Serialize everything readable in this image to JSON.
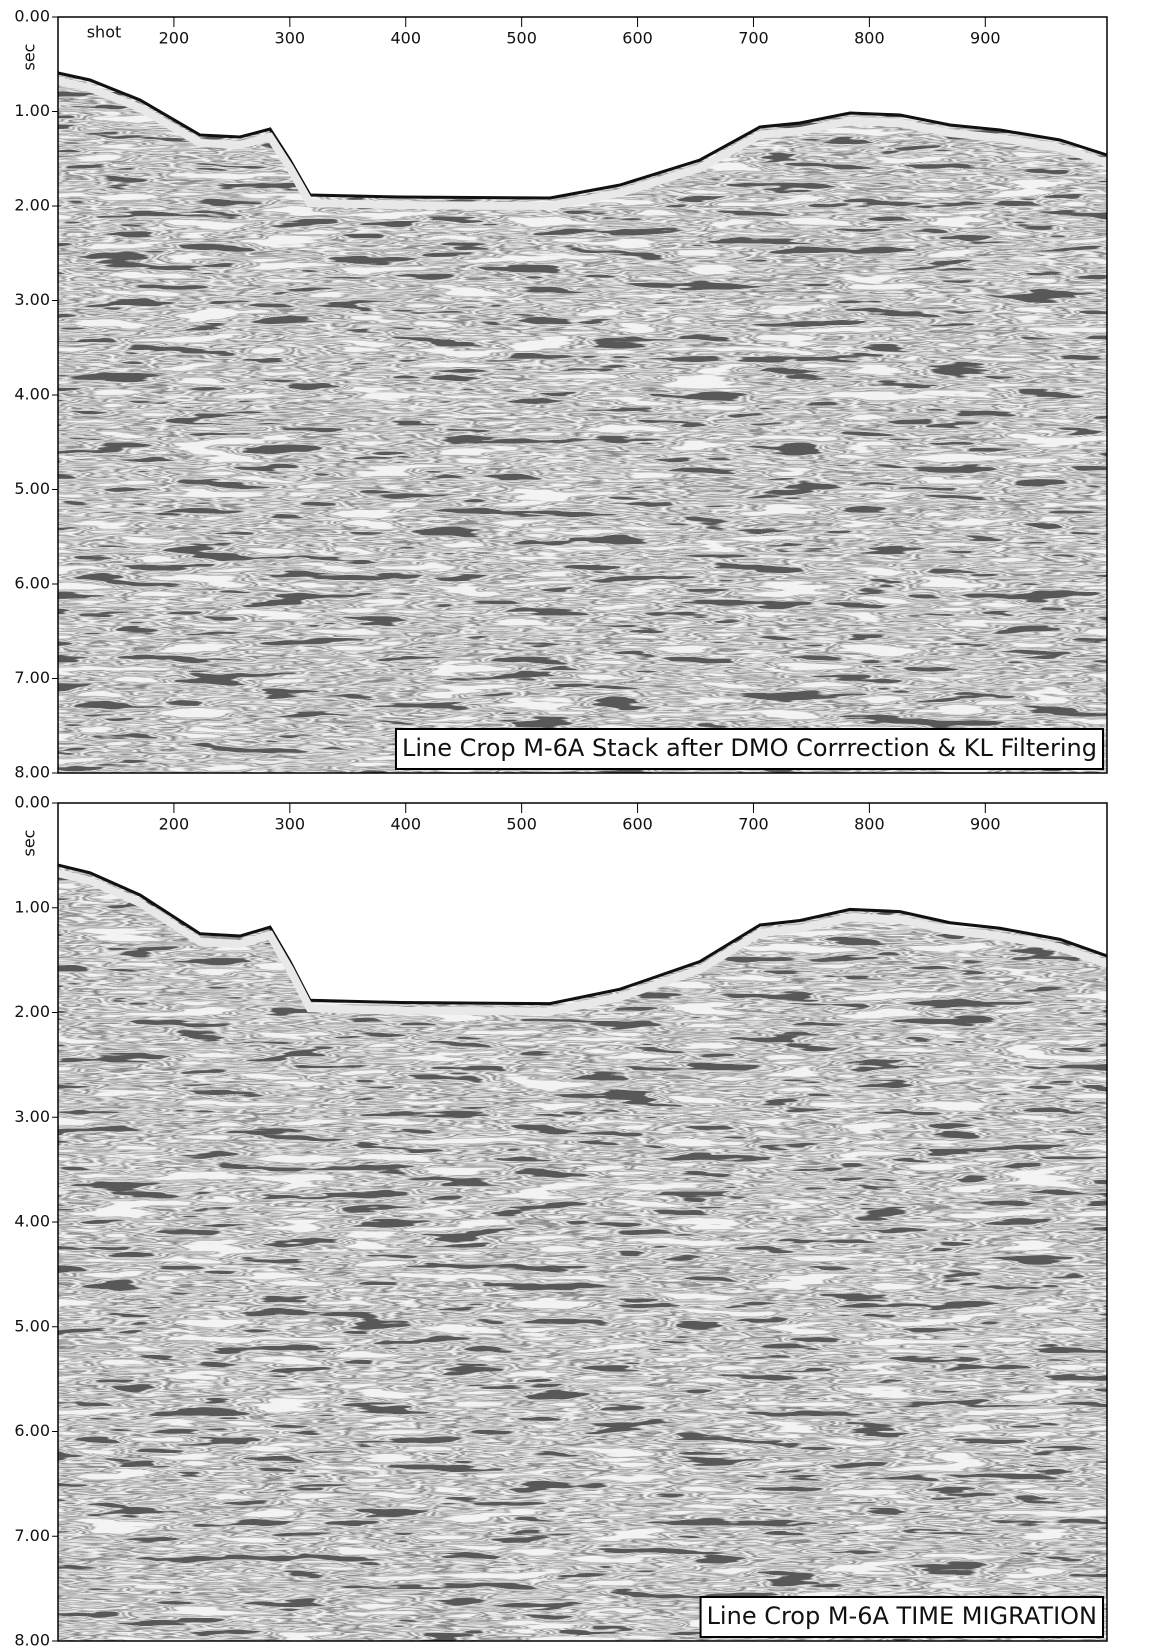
{
  "chart_data": [
    {
      "type": "seismic",
      "x_label": "shot",
      "y_label": "sec",
      "xlim": [
        100,
        1005
      ],
      "xticks": [
        200,
        300,
        400,
        500,
        600,
        700,
        800,
        900
      ],
      "ylim": [
        0,
        8
      ],
      "yticks": [
        {
          "value": 0,
          "label": "0.00"
        },
        {
          "value": 1,
          "label": "1.00"
        },
        {
          "value": 2,
          "label": "2.00"
        },
        {
          "value": 3,
          "label": "3.00"
        },
        {
          "value": 4,
          "label": "4.00"
        },
        {
          "value": 5,
          "label": "5.00"
        },
        {
          "value": 6,
          "label": "6.00"
        },
        {
          "value": 7,
          "label": "7.00"
        },
        {
          "value": 8,
          "label": "8.00"
        }
      ],
      "annotation": "Line Crop M-6A Stack after DMO Corrrection & KL Filtering"
    },
    {
      "type": "seismic",
      "y_label": "sec",
      "xlim": [
        100,
        1005
      ],
      "xticks": [
        200,
        300,
        400,
        500,
        600,
        700,
        800,
        900
      ],
      "ylim": [
        0,
        8
      ],
      "yticks": [
        {
          "value": 0,
          "label": "0.00"
        },
        {
          "value": 1,
          "label": "1.00"
        },
        {
          "value": 2,
          "label": "2.00"
        },
        {
          "value": 3,
          "label": "3.00"
        },
        {
          "value": 4,
          "label": "4.00"
        },
        {
          "value": 5,
          "label": "5.00"
        },
        {
          "value": 6,
          "label": "6.00"
        },
        {
          "value": 7,
          "label": "7.00"
        },
        {
          "value": 8,
          "label": "8.00"
        }
      ],
      "annotation": "Line Crop M-6A TIME MIGRATION"
    }
  ]
}
